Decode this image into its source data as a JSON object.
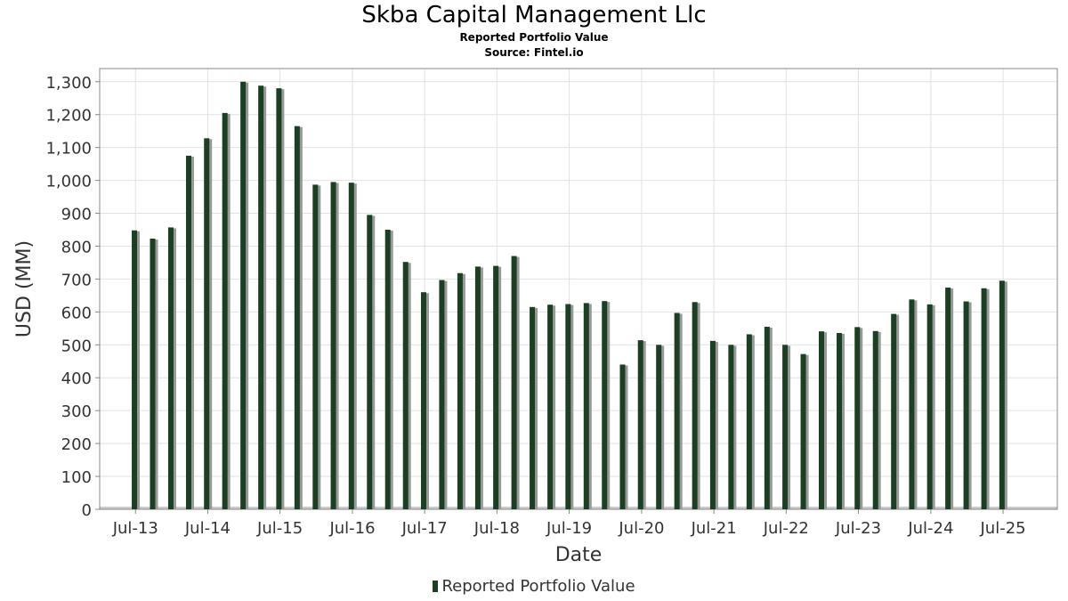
{
  "chart_data": {
    "type": "bar",
    "title": "Skba Capital Management Llc",
    "subtitle": "Reported Portfolio Value",
    "source": "Source: Fintel.io",
    "xlabel": "Date",
    "ylabel": "USD (MM)",
    "ylim": [
      0,
      1340
    ],
    "yticks": [
      0,
      100,
      200,
      300,
      400,
      500,
      600,
      700,
      800,
      900,
      1000,
      1100,
      1200,
      1300
    ],
    "ytick_labels": [
      "0",
      "100",
      "200",
      "300",
      "400",
      "500",
      "600",
      "700",
      "800",
      "900",
      "1,000",
      "1,100",
      "1,200",
      "1,300"
    ],
    "xlim": [
      "2013-01-01",
      "2026-04-01"
    ],
    "xticks": [
      "2013-07-01",
      "2014-07-01",
      "2015-07-01",
      "2016-07-01",
      "2017-07-01",
      "2018-07-01",
      "2019-07-01",
      "2020-07-01",
      "2021-07-01",
      "2022-07-01",
      "2023-07-01",
      "2024-07-01",
      "2025-07-01"
    ],
    "xtick_labels": [
      "Jul-13",
      "Jul-14",
      "Jul-15",
      "Jul-16",
      "Jul-17",
      "Jul-18",
      "Jul-19",
      "Jul-20",
      "Jul-21",
      "Jul-22",
      "Jul-23",
      "Jul-24",
      "Jul-25"
    ],
    "grid": true,
    "legend_position": "bottom",
    "series": [
      {
        "name": "Reported Portfolio Value",
        "color": "#1a3f23",
        "shadow_color": "#999999",
        "dates": [
          "2013-06-30",
          "2013-09-30",
          "2013-12-31",
          "2014-03-31",
          "2014-06-30",
          "2014-09-30",
          "2014-12-31",
          "2015-03-31",
          "2015-06-30",
          "2015-09-30",
          "2015-12-31",
          "2016-03-31",
          "2016-06-30",
          "2016-09-30",
          "2016-12-31",
          "2017-03-31",
          "2017-06-30",
          "2017-09-30",
          "2017-12-31",
          "2018-03-31",
          "2018-06-30",
          "2018-09-30",
          "2018-12-31",
          "2019-03-31",
          "2019-06-30",
          "2019-09-30",
          "2019-12-31",
          "2020-03-31",
          "2020-06-30",
          "2020-09-30",
          "2020-12-31",
          "2021-03-31",
          "2021-06-30",
          "2021-09-30",
          "2021-12-31",
          "2022-03-31",
          "2022-06-30",
          "2022-09-30",
          "2022-12-31",
          "2023-03-31",
          "2023-06-30",
          "2023-09-30",
          "2023-12-31",
          "2024-03-31",
          "2024-06-30",
          "2024-09-30",
          "2024-12-31",
          "2025-03-31",
          "2025-06-30"
        ],
        "values": [
          848,
          823,
          857,
          1075,
          1128,
          1205,
          1300,
          1288,
          1280,
          1165,
          987,
          995,
          993,
          895,
          850,
          752,
          660,
          697,
          718,
          738,
          740,
          770,
          615,
          622,
          624,
          627,
          633,
          440,
          514,
          500,
          597,
          630,
          512,
          500,
          532,
          555,
          500,
          472,
          541,
          536,
          554,
          542,
          594,
          638,
          623,
          674,
          632,
          672,
          695
        ]
      }
    ]
  }
}
